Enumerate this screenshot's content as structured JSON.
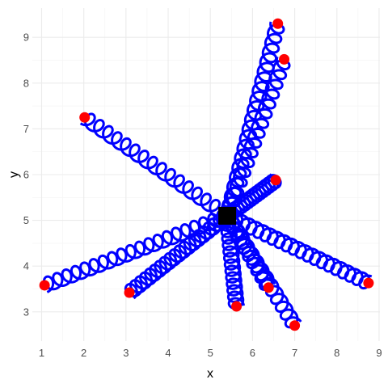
{
  "chart_data": {
    "type": "scatter",
    "title": "",
    "xlabel": "x",
    "ylabel": "y",
    "xlim": [
      0.78,
      9.02
    ],
    "ylim": [
      2.36,
      9.64
    ],
    "x_ticks": [
      1,
      2,
      3,
      4,
      5,
      6,
      7,
      8,
      9
    ],
    "y_ticks": [
      3,
      4,
      5,
      6,
      7,
      8,
      9
    ],
    "x_tick_labels": [
      "1",
      "2",
      "3",
      "4",
      "5",
      "6",
      "7",
      "8",
      "9"
    ],
    "y_tick_labels": [
      "3",
      "4",
      "5",
      "6",
      "7",
      "8",
      "9"
    ],
    "grid": true,
    "center": {
      "x": 5.4,
      "y": 5.1,
      "color": "#000000",
      "shape": "square"
    },
    "endpoints": {
      "color": "#ff0000",
      "x": [
        6.6,
        6.75,
        2.02,
        6.55,
        1.07,
        3.08,
        5.62,
        6.38,
        7.0,
        8.75
      ],
      "y": [
        9.3,
        8.52,
        7.25,
        5.88,
        3.58,
        3.42,
        3.12,
        3.53,
        2.7,
        3.63
      ]
    },
    "springs": {
      "color": "#0000ff",
      "coils": [
        20,
        16,
        16,
        16,
        20,
        20,
        14,
        10,
        14,
        20
      ]
    }
  }
}
